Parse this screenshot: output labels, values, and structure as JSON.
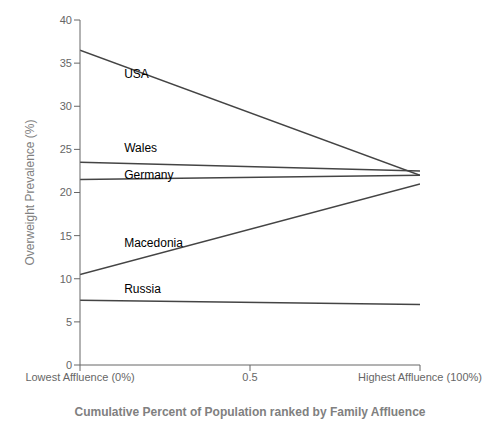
{
  "chart_data": {
    "type": "line",
    "xlabel": "Cumulative Percent of Population ranked by Family Affluence",
    "ylabel": "Overweight Prevalence (%)",
    "x": [
      0,
      1
    ],
    "series": [
      {
        "name": "USA",
        "color": "#444444",
        "values": [
          36.5,
          22.0
        ]
      },
      {
        "name": "Wales",
        "color": "#444444",
        "values": [
          23.5,
          22.5
        ]
      },
      {
        "name": "Germany",
        "color": "#444444",
        "values": [
          21.5,
          22.0
        ]
      },
      {
        "name": "Macedonia",
        "color": "#444444",
        "values": [
          10.5,
          21.0
        ]
      },
      {
        "name": "Russia",
        "color": "#444444",
        "values": [
          7.5,
          7.0
        ]
      }
    ],
    "annotations": [
      {
        "text": "USA",
        "x": 0.13,
        "y": 33.8
      },
      {
        "text": "Wales",
        "x": 0.13,
        "y": 25.2
      },
      {
        "text": "Germany",
        "x": 0.13,
        "y": 22.1
      },
      {
        "text": "Macedonia",
        "x": 0.13,
        "y": 14.2
      },
      {
        "text": "Russia",
        "x": 0.13,
        "y": 8.8
      }
    ],
    "xlim": [
      0,
      1
    ],
    "xticks": [
      {
        "value": 0,
        "label": "Lowest Affluence (0%)"
      },
      0.5,
      {
        "value": 1,
        "label": "Highest Affluence (100%)"
      }
    ],
    "ylim": [
      0,
      40
    ],
    "yticks": [
      0,
      5,
      10,
      15,
      20,
      25,
      30,
      35,
      40
    ],
    "grid": false
  }
}
